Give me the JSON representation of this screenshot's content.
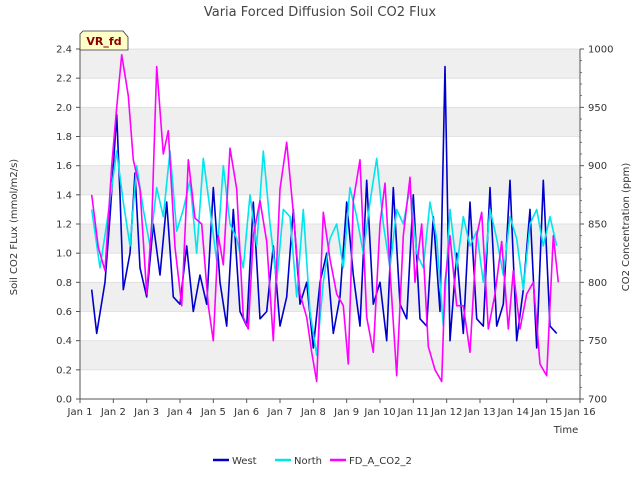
{
  "chart_data": {
    "type": "line",
    "title": "Varia Forced Diffusion Soil CO2 Flux",
    "badge": "VR_fd",
    "xlabel": "Time",
    "ylabel_left": "Soil CO2 FLux (mmol/m2/s)",
    "ylabel_right": "CO2 Concentration (ppm)",
    "x_ticks": [
      "Jan 1",
      "Jan 2",
      "Jan 3",
      "Jan 4",
      "Jan 5",
      "Jan 6",
      "Jan 7",
      "Jan 8",
      "Jan 9",
      "Jan 10",
      "Jan 11",
      "Jan 12",
      "Jan 13",
      "Jan 14",
      "Jan 15",
      "Jan 16"
    ],
    "xlim_days": [
      1,
      16
    ],
    "ylim_left": [
      0.0,
      2.4
    ],
    "ylim_right": [
      700,
      1000
    ],
    "yticks_left": [
      "0.0",
      "0.2",
      "0.4",
      "0.6",
      "0.8",
      "1.0",
      "1.2",
      "1.4",
      "1.6",
      "1.8",
      "2.0",
      "2.2",
      "2.4"
    ],
    "yticks_right": [
      "700",
      "750",
      "800",
      "850",
      "900",
      "950",
      "1000"
    ],
    "grid": "horizontal banded",
    "legend_position": "bottom-center",
    "series": [
      {
        "name": "West",
        "axis": "left",
        "color": "#0000cc",
        "x_days": [
          1.35,
          1.5,
          1.75,
          1.9,
          2.1,
          2.2,
          2.3,
          2.5,
          2.65,
          2.8,
          3.0,
          3.2,
          3.4,
          3.6,
          3.8,
          4.0,
          4.2,
          4.4,
          4.6,
          4.8,
          5.0,
          5.2,
          5.4,
          5.6,
          5.8,
          6.0,
          6.2,
          6.4,
          6.6,
          6.8,
          7.0,
          7.2,
          7.4,
          7.6,
          7.8,
          8.0,
          8.2,
          8.4,
          8.6,
          8.8,
          9.0,
          9.2,
          9.4,
          9.6,
          9.8,
          10.0,
          10.2,
          10.4,
          10.6,
          10.8,
          11.0,
          11.2,
          11.4,
          11.6,
          11.8,
          11.95,
          12.1,
          12.3,
          12.5,
          12.7,
          12.9,
          13.1,
          13.3,
          13.5,
          13.7,
          13.9,
          14.1,
          14.3,
          14.5,
          14.7,
          14.9,
          15.1,
          15.3
        ],
        "values": [
          0.75,
          0.45,
          0.8,
          1.25,
          1.95,
          1.4,
          0.75,
          1.0,
          1.55,
          0.9,
          0.7,
          1.2,
          0.85,
          1.35,
          0.7,
          0.65,
          1.05,
          0.6,
          0.85,
          0.65,
          1.45,
          0.8,
          0.5,
          1.3,
          0.6,
          0.5,
          1.35,
          0.55,
          0.6,
          1.05,
          0.5,
          0.7,
          1.3,
          0.65,
          0.8,
          0.35,
          0.8,
          1.0,
          0.45,
          0.7,
          1.35,
          0.85,
          0.5,
          1.5,
          0.65,
          0.8,
          0.4,
          1.45,
          0.65,
          0.55,
          1.4,
          0.55,
          0.5,
          1.25,
          0.6,
          2.28,
          0.4,
          1.0,
          0.45,
          1.35,
          0.55,
          0.5,
          1.45,
          0.5,
          0.65,
          1.5,
          0.4,
          0.75,
          1.3,
          0.35,
          1.5,
          0.5,
          0.45
        ]
      },
      {
        "name": "North",
        "axis": "left",
        "color": "#00e5ee",
        "x_days": [
          1.35,
          1.6,
          1.8,
          2.1,
          2.3,
          2.5,
          2.7,
          2.9,
          3.1,
          3.3,
          3.5,
          3.7,
          3.9,
          4.1,
          4.3,
          4.5,
          4.7,
          4.9,
          5.1,
          5.3,
          5.5,
          5.7,
          5.9,
          6.1,
          6.3,
          6.5,
          6.7,
          6.9,
          7.1,
          7.3,
          7.5,
          7.7,
          7.9,
          8.1,
          8.3,
          8.5,
          8.7,
          8.9,
          9.1,
          9.3,
          9.5,
          9.7,
          9.9,
          10.1,
          10.3,
          10.5,
          10.7,
          10.9,
          11.1,
          11.3,
          11.5,
          11.7,
          11.9,
          12.1,
          12.3,
          12.5,
          12.7,
          12.9,
          13.1,
          13.3,
          13.5,
          13.7,
          13.9,
          14.1,
          14.3,
          14.5,
          14.7,
          14.9,
          15.1,
          15.3
        ],
        "values": [
          1.3,
          0.9,
          1.2,
          1.7,
          1.35,
          1.05,
          1.6,
          1.3,
          1.05,
          1.45,
          1.25,
          1.7,
          1.15,
          1.3,
          1.5,
          1.0,
          1.65,
          1.3,
          0.95,
          1.6,
          1.2,
          1.1,
          0.9,
          1.4,
          1.05,
          1.7,
          1.2,
          0.8,
          1.3,
          1.25,
          0.7,
          1.3,
          0.6,
          0.3,
          0.8,
          1.1,
          1.2,
          0.9,
          1.45,
          1.25,
          1.0,
          1.35,
          1.65,
          1.2,
          0.9,
          1.3,
          1.2,
          1.45,
          1.0,
          0.9,
          1.35,
          1.1,
          0.5,
          1.3,
          0.9,
          1.25,
          1.05,
          1.15,
          0.8,
          1.3,
          1.1,
          0.85,
          1.25,
          1.1,
          0.75,
          1.2,
          1.3,
          1.05,
          1.25,
          1.05
        ]
      },
      {
        "name": "FD_A_CO2_2",
        "axis": "right",
        "color": "#ff00ff",
        "x_days": [
          1.35,
          1.55,
          1.75,
          1.95,
          2.1,
          2.25,
          2.45,
          2.6,
          2.8,
          3.0,
          3.15,
          3.3,
          3.5,
          3.65,
          3.85,
          4.05,
          4.25,
          4.45,
          4.65,
          4.85,
          5.0,
          5.15,
          5.3,
          5.5,
          5.7,
          5.9,
          6.05,
          6.2,
          6.4,
          6.6,
          6.8,
          7.0,
          7.2,
          7.4,
          7.6,
          7.8,
          7.95,
          8.1,
          8.3,
          8.5,
          8.7,
          8.9,
          9.05,
          9.2,
          9.4,
          9.6,
          9.8,
          10.0,
          10.15,
          10.3,
          10.5,
          10.7,
          10.9,
          11.05,
          11.25,
          11.45,
          11.65,
          11.85,
          11.95,
          12.1,
          12.3,
          12.5,
          12.7,
          12.9,
          13.05,
          13.25,
          13.45,
          13.65,
          13.85,
          14.0,
          14.2,
          14.4,
          14.6,
          14.8,
          15.0,
          15.2,
          15.35
        ],
        "values": [
          875,
          830,
          810,
          900,
          950,
          995,
          960,
          905,
          880,
          790,
          850,
          985,
          910,
          930,
          830,
          780,
          905,
          855,
          850,
          780,
          750,
          840,
          815,
          915,
          880,
          770,
          760,
          840,
          870,
          835,
          750,
          880,
          920,
          860,
          790,
          770,
          740,
          715,
          860,
          820,
          790,
          780,
          730,
          870,
          905,
          770,
          740,
          850,
          885,
          810,
          720,
          840,
          890,
          800,
          850,
          745,
          725,
          715,
          800,
          840,
          780,
          780,
          740,
          840,
          860,
          760,
          790,
          835,
          760,
          810,
          760,
          790,
          800,
          730,
          720,
          840,
          800
        ]
      }
    ]
  }
}
